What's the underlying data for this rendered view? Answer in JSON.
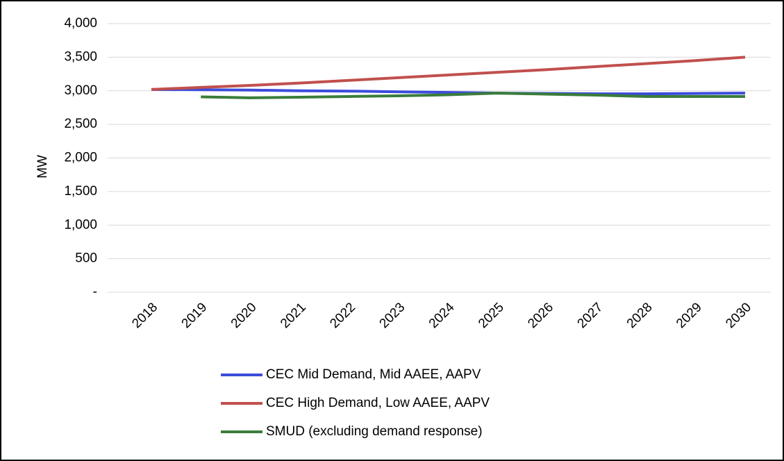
{
  "chart_data": {
    "type": "line",
    "y_label": "MW",
    "categories": [
      "2018",
      "2019",
      "2020",
      "2021",
      "2022",
      "2023",
      "2024",
      "2025",
      "2026",
      "2027",
      "2028",
      "2029",
      "2030"
    ],
    "series": [
      {
        "name": "CEC Mid Demand, Mid AAEE, AAPV",
        "color": "#3b4cdb",
        "values": [
          3020,
          3015,
          3010,
          3000,
          2995,
          2985,
          2975,
          2965,
          2960,
          2955,
          2955,
          2960,
          2965
        ]
      },
      {
        "name": "CEC High Demand, Low AAEE, AAPV",
        "color": "#c0504d",
        "values": [
          3020,
          3050,
          3080,
          3115,
          3155,
          3195,
          3235,
          3275,
          3315,
          3360,
          3405,
          3450,
          3500
        ]
      },
      {
        "name": "SMUD (excluding demand response)",
        "color": "#3a7d3a",
        "values": [
          null,
          2910,
          2895,
          2905,
          2915,
          2925,
          2940,
          2965,
          2950,
          2935,
          2915,
          2915,
          2915
        ]
      }
    ],
    "ylim": [
      0,
      4000
    ],
    "yticks": [
      {
        "value": 0,
        "label": "-"
      },
      500,
      {
        "value": 1000,
        "label": "1,000"
      },
      {
        "value": 1500,
        "label": "1,500"
      },
      {
        "value": 2000,
        "label": "2,000"
      },
      {
        "value": 2500,
        "label": "2,500"
      },
      {
        "value": 3000,
        "label": "3,000"
      },
      {
        "value": 3500,
        "label": "3,500"
      },
      {
        "value": 4000,
        "label": "4,000"
      }
    ],
    "grid": true,
    "legend": "bottom"
  }
}
